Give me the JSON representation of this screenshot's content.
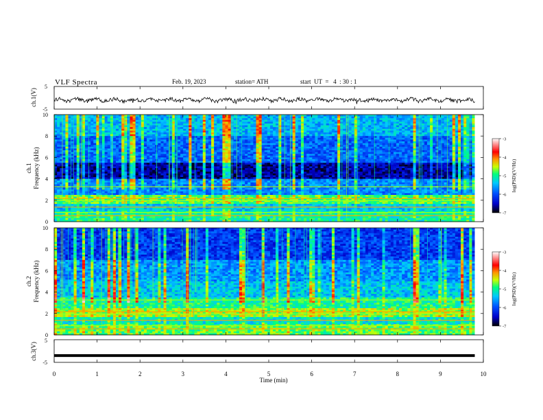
{
  "header": {
    "title": "VLF Spectra",
    "date": "Feb. 19, 2023",
    "station": "station= ATH",
    "start": "start  UT  =   4  : 30 : 1"
  },
  "colors": {
    "waveform": "#000000",
    "colormap": [
      "#000000",
      "#0000c8",
      "#0050ff",
      "#00c8ff",
      "#00ff7f",
      "#c8ff00",
      "#ff9600",
      "#ff0000",
      "#ffffff"
    ]
  },
  "chart_data": [
    {
      "type": "line",
      "name": "ch1-waveform",
      "ylabel": "ch.1(V)",
      "yticks": [
        "5",
        "-5"
      ],
      "ylim": [
        -5,
        5
      ],
      "xlim": [
        0,
        10
      ],
      "x_end": 9.8,
      "baseline": -1.0
    },
    {
      "type": "heatmap",
      "name": "ch1-spectrogram",
      "ylabel": "ch.1\nFrequency (kHz)",
      "yticks": [
        "0",
        "2",
        "4",
        "6",
        "8",
        "10"
      ],
      "ylim": [
        0,
        10
      ],
      "xlim": [
        0,
        10
      ],
      "x_end": 9.8,
      "colorbar": {
        "label": "log(PSD)(V²/Hz)",
        "ticks": [
          "-3",
          "-4",
          "-5",
          "-6",
          "-7"
        ],
        "range": [
          -7,
          -3
        ]
      }
    },
    {
      "type": "heatmap",
      "name": "ch2-spectrogram",
      "ylabel": "ch.2\nFrequency (kHz)",
      "yticks": [
        "0",
        "2",
        "4",
        "6",
        "8",
        "10"
      ],
      "ylim": [
        0,
        10
      ],
      "xlim": [
        0,
        10
      ],
      "x_end": 9.8,
      "colorbar": {
        "label": "log(PSD)(V²/Hz)",
        "ticks": [
          "-3",
          "-4",
          "-5",
          "-6",
          "-7"
        ],
        "range": [
          -7,
          -3
        ]
      }
    },
    {
      "type": "line",
      "name": "ch3-waveform",
      "ylabel": "ch.3(V)",
      "yticks": [
        "5",
        "-5"
      ],
      "ylim": [
        -5,
        5
      ],
      "xlim": [
        0,
        10
      ],
      "x_end": 9.8,
      "baseline": -2.0
    }
  ],
  "xaxis": {
    "label": "Time  (min)",
    "ticks": [
      "0",
      "1",
      "2",
      "3",
      "4",
      "5",
      "6",
      "7",
      "8",
      "9",
      "10"
    ]
  }
}
